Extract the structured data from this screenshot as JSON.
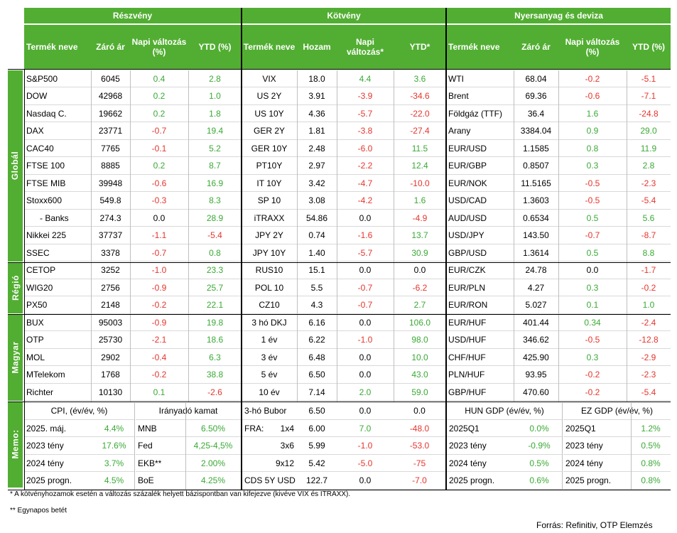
{
  "headers": {
    "group1": "Részvény",
    "group2": "Kötvény",
    "group3": "Nyersanyag és deviza",
    "cols": [
      "Termék neve",
      "Záró ár",
      "Napi változás (%)",
      "YTD (%)",
      "Termék neve",
      "Hozam",
      "Napi változás*",
      "YTD*",
      "Termék neve",
      "Záró ár",
      "Napi változás (%)",
      "YTD (%)"
    ]
  },
  "sections": [
    {
      "label": "Globál",
      "rows": 11
    },
    {
      "label": "Régió",
      "rows": 3
    },
    {
      "label": "Magyar",
      "rows": 5
    },
    {
      "label": "Memo:",
      "rows": 5
    }
  ],
  "rows": [
    [
      "S&P500",
      "6045",
      "0.4",
      "2.8",
      "VIX",
      "18.0",
      "4.4",
      "3.6",
      "WTI",
      "68.04",
      "-0.2",
      "-5.1"
    ],
    [
      "DOW",
      "42968",
      "0.2",
      "1.0",
      "US 2Y",
      "3.91",
      "-3.9",
      "-34.6",
      "Brent",
      "69.36",
      "-0.6",
      "-7.1"
    ],
    [
      "Nasdaq C.",
      "19662",
      "0.2",
      "1.8",
      "US 10Y",
      "4.36",
      "-5.7",
      "-22.0",
      "Földgáz (TTF)",
      "36.4",
      "1.6",
      "-24.8"
    ],
    [
      "DAX",
      "23771",
      "-0.7",
      "19.4",
      "GER 2Y",
      "1.81",
      "-3.8",
      "-27.4",
      "Arany",
      "3384.04",
      "0.9",
      "29.0"
    ],
    [
      "CAC40",
      "7765",
      "-0.1",
      "5.2",
      "GER 10Y",
      "2.48",
      "-6.0",
      "11.5",
      "EUR/USD",
      "1.1585",
      "0.8",
      "11.9"
    ],
    [
      "FTSE 100",
      "8885",
      "0.2",
      "8.7",
      "PT10Y",
      "2.97",
      "-2.2",
      "12.4",
      "EUR/GBP",
      "0.8507",
      "0.3",
      "2.8"
    ],
    [
      "FTSE MIB",
      "39948",
      "-0.6",
      "16.9",
      "IT 10Y",
      "3.42",
      "-4.7",
      "-10.0",
      "EUR/NOK",
      "11.5165",
      "-0.5",
      "-2.3"
    ],
    [
      "Stoxx600",
      "549.8",
      "-0.3",
      "8.3",
      "SP 10",
      "3.08",
      "-4.2",
      "1.6",
      "USD/CAD",
      "1.3603",
      "-0.5",
      "-5.4"
    ],
    [
      "   - Banks",
      "274.3",
      "0.0",
      "28.9",
      "iTRAXX",
      "54.86",
      "0.0",
      "-4.9",
      "AUD/USD",
      "0.6534",
      "0.5",
      "5.6"
    ],
    [
      "Nikkei 225",
      "37737",
      "-1.1",
      "-5.4",
      "JPY 2Y",
      "0.74",
      "-1.6",
      "13.7",
      "USD/JPY",
      "143.50",
      "-0.7",
      "-8.7"
    ],
    [
      "SSEC",
      "3378",
      "-0.7",
      "0.8",
      "JPY 10Y",
      "1.40",
      "-5.7",
      "30.9",
      "GBP/USD",
      "1.3614",
      "0.5",
      "8.8"
    ],
    [
      "CETOP",
      "3252",
      "-1.0",
      "23.3",
      "RUS10",
      "15.1",
      "0.0",
      "0.0",
      "EUR/CZK",
      "24.78",
      "0.0",
      "-1.7"
    ],
    [
      "WIG20",
      "2756",
      "-0.9",
      "25.7",
      "POL 10",
      "5.5",
      "-0.7",
      "-6.2",
      "EUR/PLN",
      "4.27",
      "0.3",
      "-0.2"
    ],
    [
      "PX50",
      "2148",
      "-0.2",
      "22.1",
      "CZ10",
      "4.3",
      "-0.7",
      "2.7",
      "EUR/RON",
      "5.027",
      "0.1",
      "1.0"
    ],
    [
      "BUX",
      "95003",
      "-0.9",
      "19.8",
      "3 hó DKJ",
      "6.16",
      "0.0",
      "106.0",
      "EUR/HUF",
      "401.44",
      "0.34",
      "-2.4"
    ],
    [
      "OTP",
      "25730",
      "-2.1",
      "18.6",
      "1 év",
      "6.22",
      "-1.0",
      "98.0",
      "USD/HUF",
      "346.62",
      "-0.5",
      "-12.8"
    ],
    [
      "MOL",
      "2902",
      "-0.4",
      "6.3",
      "3 év",
      "6.48",
      "0.0",
      "10.0",
      "CHF/HUF",
      "425.90",
      "0.3",
      "-2.9"
    ],
    [
      "MTelekom",
      "1768",
      "-0.2",
      "38.8",
      "5 év",
      "6.50",
      "0.0",
      "43.0",
      "PLN/HUF",
      "93.95",
      "-0.2",
      "-2.3"
    ],
    [
      "Richter",
      "10130",
      "0.1",
      "-2.6",
      "10 év",
      "7.14",
      "2.0",
      "59.0",
      "GBP/HUF",
      "470.60",
      "-0.2",
      "-5.4"
    ]
  ],
  "memo": {
    "cpi": {
      "title": "CPI, (év/év, %)",
      "rows": [
        [
          "2025. máj.",
          "4.4%"
        ],
        [
          "2023 tény",
          "17.6%"
        ],
        [
          "2024 tény",
          "3.7%"
        ],
        [
          "2025 progn.",
          "4.5%"
        ]
      ]
    },
    "rate": {
      "title": "Irányadó kamat",
      "rows": [
        [
          "MNB",
          "6.50%"
        ],
        [
          "Fed",
          "4,25-4,5%"
        ],
        [
          "EKB**",
          "2.00%"
        ],
        [
          "BoE",
          "4.25%"
        ]
      ]
    },
    "bubor": [
      [
        "3-hó Bubor",
        "",
        "6.50",
        "0.0",
        "0.0"
      ],
      [
        "FRA:",
        "1x4",
        "6.00",
        "7.0",
        "-48.0"
      ],
      [
        "",
        "3x6",
        "5.99",
        "-1.0",
        "-53.0"
      ],
      [
        "",
        "9x12",
        "5.42",
        "-5.0",
        "-75"
      ],
      [
        "CDS 5Y USD",
        "",
        "122.7",
        "0.0",
        "-7.0"
      ]
    ],
    "hun_gdp": {
      "title": "HUN GDP (év/év, %)",
      "rows": [
        [
          "2025Q1",
          "0.0%"
        ],
        [
          "2023 tény",
          "-0.9%"
        ],
        [
          "2024 tény",
          "0.5%"
        ],
        [
          "2025 progn.",
          "0.6%"
        ]
      ]
    },
    "ez_gdp": {
      "title": "EZ GDP (év/év, %)",
      "rows": [
        [
          "2025Q1",
          "1.2%"
        ],
        [
          "2023 tény",
          "0.5%"
        ],
        [
          "2024 tény",
          "0.8%"
        ],
        [
          "2025 progn.",
          "0.8%"
        ]
      ]
    }
  },
  "notes": {
    "note1": "* A kötvényhozamok esetén a változás százalék helyett bázispontban van kifejezve (kivéve VIX és ITRAXX).",
    "note2": "** Egynapos betét",
    "source": "Forrás: Refinitiv, OTP Elemzés"
  },
  "colors": {
    "header_green": "#52ae32",
    "positive": "#3aa935",
    "negative": "#e5352d"
  }
}
